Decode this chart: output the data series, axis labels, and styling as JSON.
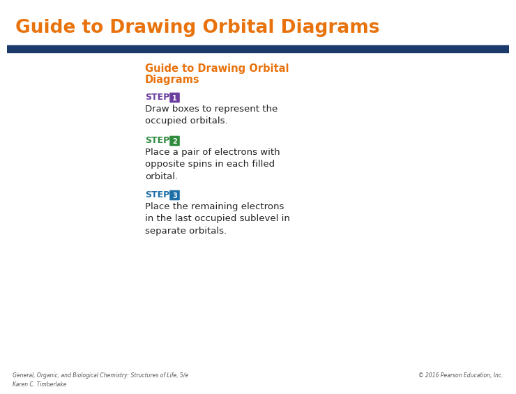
{
  "header_title": "Guide to Drawing Orbital Diagrams",
  "header_bg": "#ffffff",
  "header_text_color": "#E8720C",
  "blue_bar_color": "#1C3A6B",
  "box_title_line1": "Guide to Drawing Orbital",
  "box_title_line2": "Diagrams",
  "box_title_color": "#E8720C",
  "step1_num": "1",
  "step1_color": "#6B3FA0",
  "step1_text": "Draw boxes to represent the\noccupied orbitals.",
  "step2_num": "2",
  "step2_color": "#2E8B3E",
  "step2_text": "Place a pair of electrons with\nopposite spins in each filled\norbital.",
  "step3_num": "3",
  "step3_color": "#1E6FA8",
  "step3_text": "Place the remaining electrons\nin the last occupied sublevel in\nseparate orbitals.",
  "footer_left": "General, Organic, and Biological Chemistry: Structures of Life, 5/e\nKaren C. Timberlake",
  "footer_right": "© 2016 Pearson Education, Inc.",
  "footer_color": "#555555",
  "body_text_color": "#222222"
}
